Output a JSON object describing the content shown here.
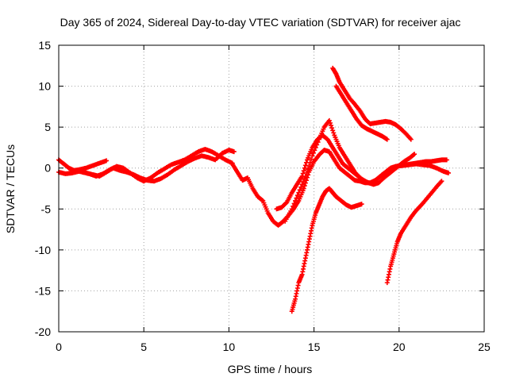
{
  "chart_data": {
    "type": "scatter",
    "title": "Day 365 of 2024, Sidereal Day-to-day VTEC variation (SDTVAR) for receiver ajac",
    "xlabel": "GPS time / hours",
    "ylabel": "SDTVAR / TECUs",
    "xlim": [
      0,
      25
    ],
    "ylim": [
      -20,
      15
    ],
    "xticks": [
      0,
      5,
      10,
      15,
      20,
      25
    ],
    "yticks": [
      -20,
      -15,
      -10,
      -5,
      0,
      5,
      10,
      15
    ],
    "grid": true,
    "marker_color": "#ff0000",
    "marker": "plus",
    "series": [
      {
        "x": [
          0.0,
          0.3,
          0.6,
          0.9,
          1.2,
          1.6,
          2.0,
          2.4,
          2.8
        ],
        "y": [
          1.0,
          0.5,
          0.0,
          -0.3,
          -0.2,
          0.0,
          0.3,
          0.6,
          0.9
        ]
      },
      {
        "x": [
          0.0,
          0.4,
          0.8,
          1.2,
          1.6,
          2.0,
          2.4,
          2.8,
          3.2,
          3.6,
          4.0,
          4.4,
          4.8,
          5.2,
          5.6,
          6.0,
          6.4,
          6.8,
          7.2,
          7.6,
          8.0,
          8.4,
          8.8,
          9.2,
          9.6,
          10.0,
          10.3
        ],
        "y": [
          -0.5,
          -0.7,
          -0.6,
          -0.4,
          -0.6,
          -0.8,
          -1.0,
          -0.5,
          0.0,
          -0.3,
          -0.5,
          -0.8,
          -1.2,
          -1.5,
          -1.6,
          -1.3,
          -0.8,
          -0.2,
          0.3,
          0.8,
          1.2,
          1.5,
          1.3,
          1.0,
          1.8,
          2.2,
          2.0
        ]
      },
      {
        "x": [
          1.0,
          1.4,
          1.8,
          2.2,
          2.6,
          3.0,
          3.4,
          3.8,
          4.2,
          4.6,
          5.0,
          5.4,
          5.8,
          6.2,
          6.6,
          7.0,
          7.4,
          7.8,
          8.2,
          8.6,
          9.0,
          9.4,
          9.8,
          10.2
        ],
        "y": [
          -0.3,
          -0.5,
          -0.7,
          -1.0,
          -0.7,
          -0.2,
          0.2,
          0.0,
          -0.6,
          -1.2,
          -1.6,
          -1.2,
          -0.6,
          -0.1,
          0.4,
          0.7,
          1.0,
          1.5,
          2.0,
          2.3,
          2.0,
          1.5,
          1.0,
          0.6
        ]
      },
      {
        "x": [
          10.2,
          10.5,
          10.8,
          11.1,
          11.4,
          11.7,
          12.0,
          12.3,
          12.6,
          12.9,
          13.2,
          13.5,
          13.8,
          14.1,
          14.4,
          14.7,
          15.0,
          15.3,
          15.6,
          15.9,
          16.2,
          16.5,
          16.8,
          17.1,
          17.4,
          17.7,
          18.0,
          18.3,
          18.6,
          18.9,
          19.2,
          19.5,
          19.8,
          20.1,
          20.4,
          20.7,
          21.0,
          21.3,
          21.6,
          21.9,
          22.2,
          22.5,
          22.8
        ],
        "y": [
          0.5,
          -0.5,
          -1.5,
          -1.2,
          -2.5,
          -3.5,
          -4.0,
          -5.5,
          -6.5,
          -7.0,
          -6.5,
          -5.8,
          -5.0,
          -4.0,
          -2.5,
          -0.5,
          0.8,
          1.6,
          2.2,
          2.0,
          1.0,
          0.0,
          -0.5,
          -1.0,
          -1.5,
          -1.6,
          -1.8,
          -1.8,
          -1.5,
          -1.0,
          -0.5,
          0.0,
          0.2,
          0.3,
          0.4,
          0.5,
          0.6,
          0.7,
          0.8,
          0.8,
          0.9,
          1.0,
          1.0
        ]
      },
      {
        "x": [
          12.8,
          13.1,
          13.4,
          13.7,
          14.0,
          14.3,
          14.6,
          14.9,
          15.2,
          15.5,
          15.8,
          16.1,
          16.4,
          16.7,
          17.0,
          17.3,
          17.6,
          17.9,
          18.2,
          18.5,
          18.8,
          19.1,
          19.4,
          19.7,
          20.0,
          20.3,
          20.6,
          20.9
        ],
        "y": [
          -5.0,
          -4.8,
          -4.2,
          -3.0,
          -2.0,
          -1.0,
          1.0,
          2.5,
          3.5,
          4.0,
          3.5,
          2.5,
          1.5,
          0.5,
          0.0,
          -0.5,
          -1.0,
          -1.5,
          -1.8,
          -2.0,
          -1.8,
          -1.2,
          -0.7,
          -0.2,
          0.3,
          0.8,
          1.2,
          1.7
        ]
      },
      {
        "x": [
          13.3,
          13.7,
          14.1,
          14.5,
          14.9,
          15.3,
          15.6,
          15.9,
          16.2,
          16.5,
          16.8,
          17.1,
          17.4,
          17.7,
          18.0
        ],
        "y": [
          -6.5,
          -5.0,
          -3.0,
          -1.0,
          1.5,
          3.5,
          5.0,
          5.8,
          4.0,
          2.5,
          1.5,
          0.5,
          -0.5,
          -1.2,
          -1.6
        ]
      },
      {
        "x": [
          13.7,
          13.9,
          14.1,
          14.3,
          14.5,
          14.7,
          14.9,
          15.1,
          15.3,
          15.5,
          15.7,
          15.9,
          16.1,
          16.3,
          16.6,
          16.9,
          17.2,
          17.5,
          17.8
        ],
        "y": [
          -17.5,
          -16.0,
          -14.0,
          -13.0,
          -11.0,
          -9.0,
          -7.0,
          -5.5,
          -4.5,
          -3.5,
          -2.8,
          -2.5,
          -3.0,
          -3.5,
          -4.0,
          -4.5,
          -4.8,
          -4.6,
          -4.4
        ]
      },
      {
        "x": [
          16.1,
          16.3,
          16.5,
          16.8,
          17.1,
          17.4,
          17.7,
          18.0,
          18.3,
          18.6,
          18.9,
          19.2,
          19.5,
          19.8,
          20.1,
          20.4,
          20.7
        ],
        "y": [
          12.2,
          11.5,
          10.5,
          9.5,
          8.5,
          7.8,
          7.0,
          6.0,
          5.4,
          5.5,
          5.6,
          5.7,
          5.6,
          5.3,
          4.8,
          4.2,
          3.5
        ]
      },
      {
        "x": [
          16.3,
          16.6,
          16.9,
          17.2,
          17.5,
          17.8,
          18.1,
          18.4,
          18.7,
          19.0,
          19.3
        ],
        "y": [
          10.0,
          9.0,
          8.0,
          7.0,
          6.0,
          5.2,
          4.8,
          4.5,
          4.2,
          3.9,
          3.5
        ]
      },
      {
        "x": [
          19.3,
          19.5,
          19.7,
          19.9,
          20.1,
          20.4,
          20.7,
          21.0,
          21.4,
          21.8,
          22.2,
          22.5
        ],
        "y": [
          -14.0,
          -12.0,
          -10.5,
          -9.0,
          -8.0,
          -7.0,
          -6.0,
          -5.2,
          -4.3,
          -3.3,
          -2.3,
          -1.6
        ]
      },
      {
        "x": [
          19.0,
          19.4,
          19.8,
          20.2,
          20.6,
          21.0,
          21.4,
          21.8,
          22.2,
          22.6,
          22.9
        ],
        "y": [
          -0.8,
          -0.3,
          0.2,
          0.3,
          0.4,
          0.5,
          0.4,
          0.3,
          0.0,
          -0.4,
          -0.6
        ]
      }
    ]
  }
}
